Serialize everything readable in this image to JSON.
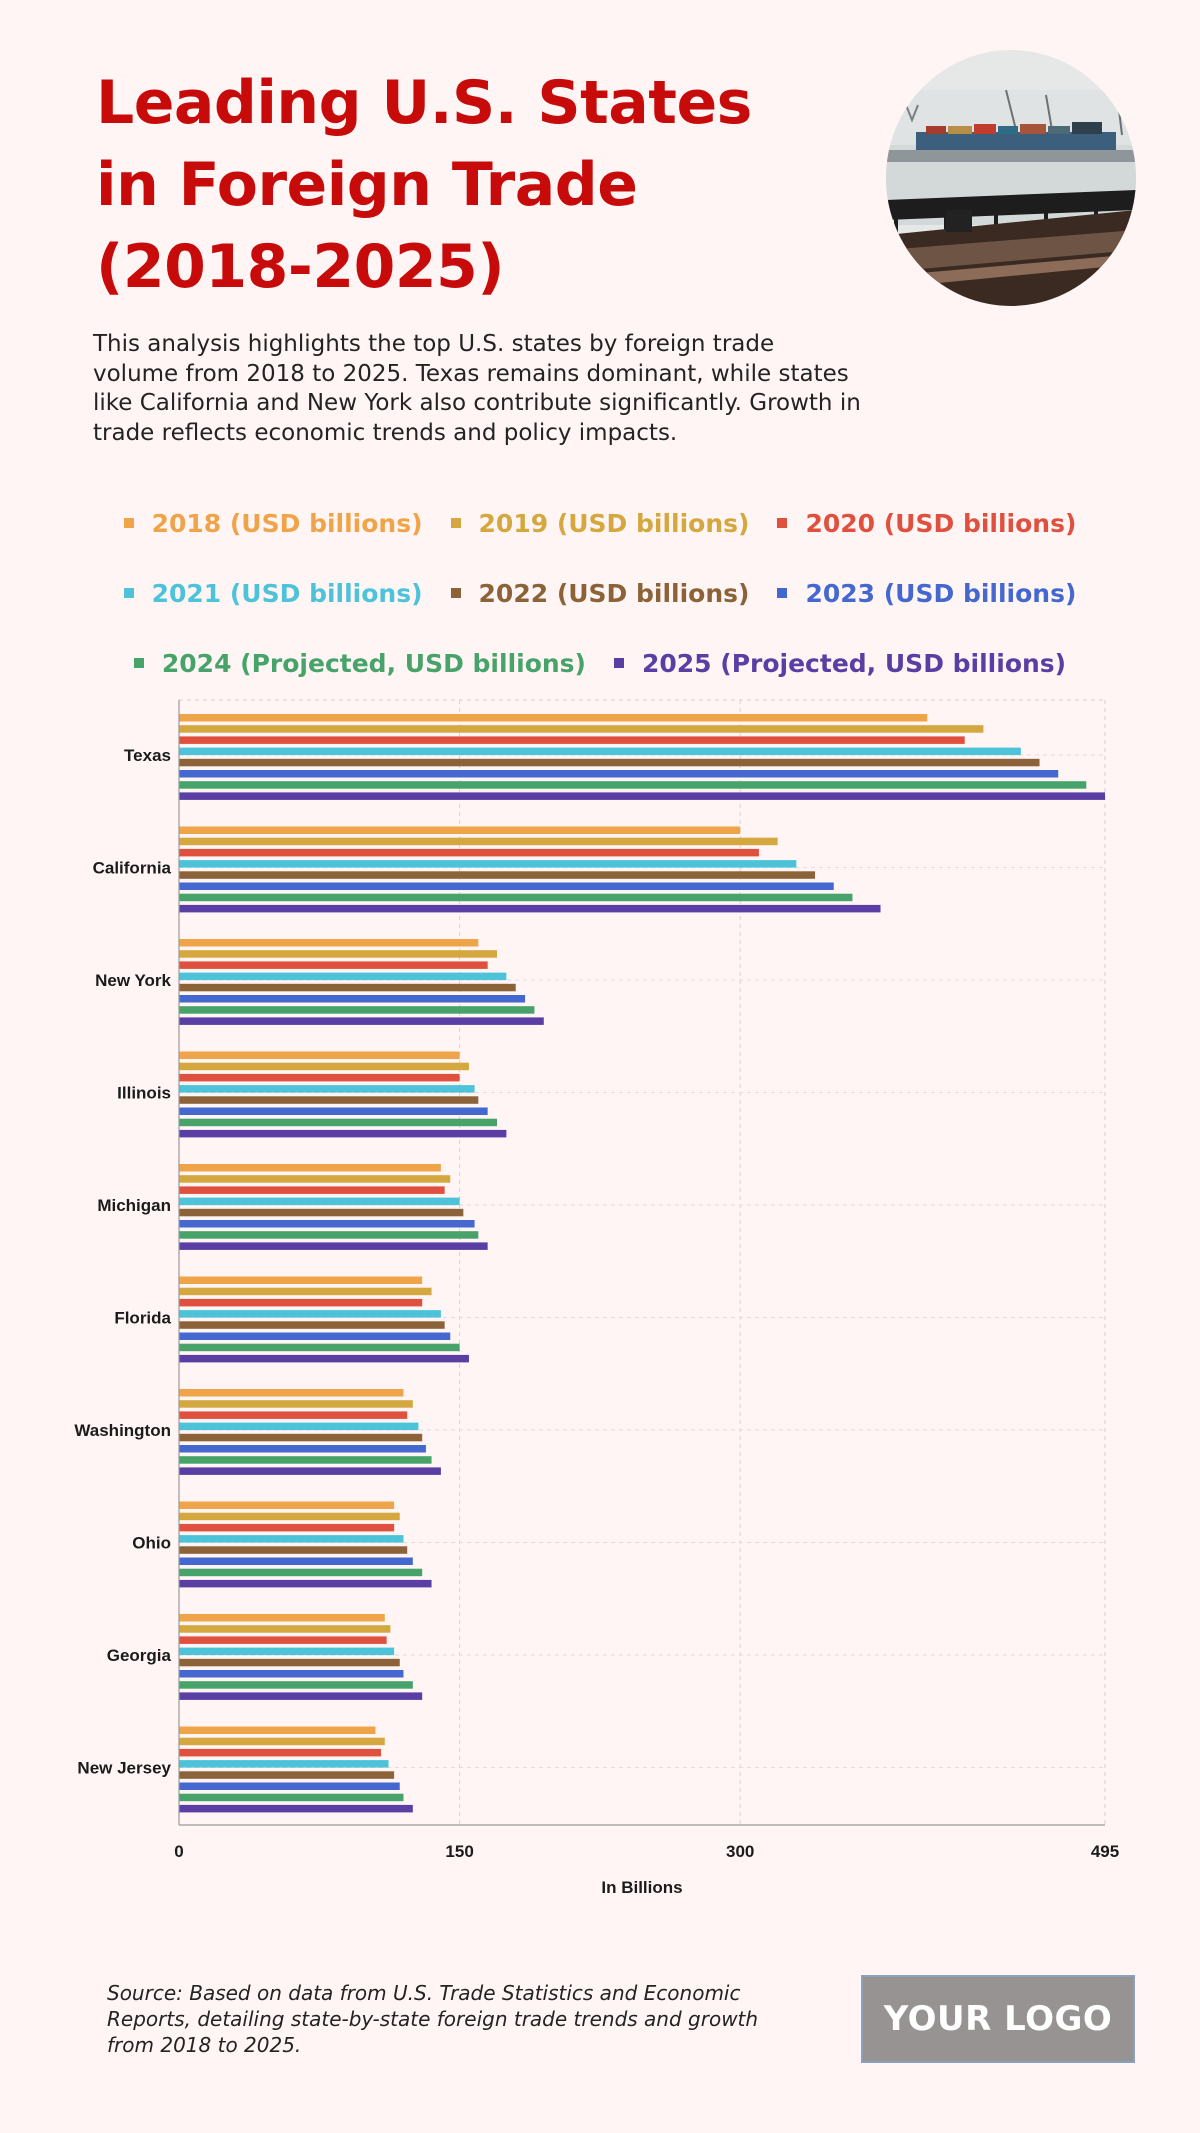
{
  "header": {
    "title": "Leading U.S. States in Foreign Trade (2018-2025)",
    "description": "This analysis highlights the top U.S. states by foreign trade volume from 2018 to 2025. Texas remains dominant, while states like California and New York also contribute significantly. Growth in trade reflects economic trends and policy impacts."
  },
  "photo": {
    "subject": "container ship at harbor pier",
    "icon": "harbor-photo"
  },
  "footer": {
    "source": "Source: Based on data from U.S. Trade Statistics and Economic Reports, detailing state-by-state foreign trade trends and growth from 2018 to 2025.",
    "logo": "YOUR LOGO"
  },
  "chart_data": {
    "type": "bar",
    "orientation": "horizontal",
    "xlabel": "In Billions",
    "ylabel": "",
    "xlim": [
      0,
      495
    ],
    "xticks": [
      "0",
      "150",
      "300",
      "495"
    ],
    "grid": true,
    "legend_position": "top",
    "categories": [
      "Texas",
      "California",
      "New York",
      "Illinois",
      "Michigan",
      "Florida",
      "Washington",
      "Ohio",
      "Georgia",
      "New Jersey"
    ],
    "series": [
      {
        "name": "2018 (USD billions)",
        "color": "#f0a449",
        "values": [
          400,
          300,
          160,
          150,
          140,
          130,
          120,
          115,
          110,
          105
        ]
      },
      {
        "name": "2019 (USD billions)",
        "color": "#d4a73f",
        "values": [
          430,
          320,
          170,
          155,
          145,
          135,
          125,
          118,
          113,
          110
        ]
      },
      {
        "name": "2020 (USD billions)",
        "color": "#e0503f",
        "values": [
          420,
          310,
          165,
          150,
          142,
          130,
          122,
          115,
          111,
          108
        ]
      },
      {
        "name": "2021 (USD billions)",
        "color": "#4cc3d9",
        "values": [
          450,
          330,
          175,
          158,
          150,
          140,
          128,
          120,
          115,
          112
        ]
      },
      {
        "name": "2022 (USD billions)",
        "color": "#8c6339",
        "values": [
          460,
          340,
          180,
          160,
          152,
          142,
          130,
          122,
          118,
          115
        ]
      },
      {
        "name": "2023 (USD billions)",
        "color": "#4468d0",
        "values": [
          470,
          350,
          185,
          165,
          158,
          145,
          132,
          125,
          120,
          118
        ]
      },
      {
        "name": "2024 (Projected, USD billions)",
        "color": "#47a36a",
        "values": [
          485,
          360,
          190,
          170,
          160,
          150,
          135,
          130,
          125,
          120
        ]
      },
      {
        "name": "2025 (Projected, USD billions)",
        "color": "#5b3ea3",
        "values": [
          495,
          375,
          195,
          175,
          165,
          155,
          140,
          135,
          130,
          125
        ]
      }
    ]
  }
}
